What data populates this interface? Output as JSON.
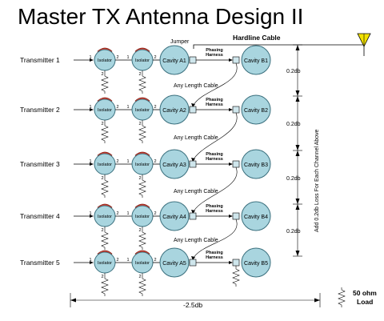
{
  "title": "Master TX Antenna Design II",
  "labels": {
    "jumper": "Jumper",
    "hardline": "Hardline Cable",
    "phasing_line1": "Phasing",
    "phasing_line2": "Harness",
    "any_length": "Any Length Cable",
    "isolator": "Isolator",
    "port1": "1",
    "port2": "2",
    "add_loss": "Add 0.2db Loss For Each Channel Above",
    "total_loss": "-2.5db",
    "load_line1": "50 ohm",
    "load_line2": "Load"
  },
  "rows": [
    {
      "transmitter": "Transmitter 1",
      "cavity_a": "Cavity A1",
      "cavity_b": "Cavity B1"
    },
    {
      "transmitter": "Transmitter 2",
      "cavity_a": "Cavity A2",
      "cavity_b": "Cavity B2"
    },
    {
      "transmitter": "Transmitter 3",
      "cavity_a": "Cavity A3",
      "cavity_b": "Cavity B3"
    },
    {
      "transmitter": "Transmitter 4",
      "cavity_a": "Cavity A4",
      "cavity_b": "Cavity B4"
    },
    {
      "transmitter": "Transmitter 5",
      "cavity_a": "Cavity A5",
      "cavity_b": "Cavity B5"
    }
  ],
  "losses": [
    "0.2db",
    "0.2db",
    "0.2db",
    "0.2db"
  ],
  "colors": {
    "component_fill": "#a9d5df",
    "isolator_cap": "#e03a2a",
    "antenna": "#f2e200"
  },
  "icons": [
    "isolator-icon",
    "cavity-icon",
    "resistor-icon",
    "antenna-icon",
    "connector-icon"
  ]
}
